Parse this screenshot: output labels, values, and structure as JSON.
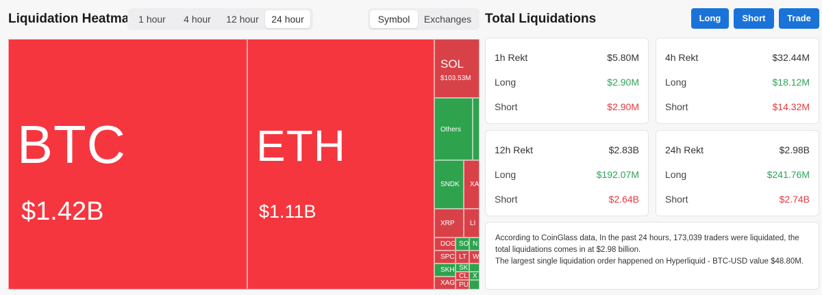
{
  "heatmap": {
    "title": "Liquidation Heatmap",
    "time_tabs": [
      "1 hour",
      "4 hour",
      "12 hour",
      "24 hour"
    ],
    "active_time_tab": "24 hour",
    "view_tabs": [
      "Symbol",
      "Exchanges"
    ],
    "active_view_tab": "Symbol",
    "colors": {
      "long_dominant": "#2fa24e",
      "short_dominant": "#f5363f"
    },
    "tiles": [
      {
        "symbol": "BTC",
        "value": "$1.42B"
      },
      {
        "symbol": "ETH",
        "value": "$1.11B"
      },
      {
        "symbol": "SOL",
        "value": "$103.53M"
      },
      {
        "symbol": "Others"
      },
      {
        "symbol": "SNDK"
      },
      {
        "symbol": "XA"
      },
      {
        "symbol": "XRP"
      },
      {
        "symbol": "LI"
      },
      {
        "symbol": "DOG"
      },
      {
        "symbol": "SO"
      },
      {
        "symbol": "N"
      },
      {
        "symbol": "LT"
      },
      {
        "symbol": "W"
      },
      {
        "symbol": "SPC"
      },
      {
        "symbol": "SK"
      },
      {
        "symbol": "SKH"
      },
      {
        "symbol": "CL"
      },
      {
        "symbol": "X"
      },
      {
        "symbol": "XAG"
      },
      {
        "symbol": "PU"
      }
    ]
  },
  "totals": {
    "title": "Total Liquidations",
    "buttons": {
      "long": "Long",
      "short": "Short",
      "trade": "Trade"
    },
    "cards": [
      {
        "label": "1h Rekt",
        "total": "$5.80M",
        "long_label": "Long",
        "long": "$2.90M",
        "short_label": "Short",
        "short": "$2.90M"
      },
      {
        "label": "4h Rekt",
        "total": "$32.44M",
        "long_label": "Long",
        "long": "$18.12M",
        "short_label": "Short",
        "short": "$14.32M"
      },
      {
        "label": "12h Rekt",
        "total": "$2.83B",
        "long_label": "Long",
        "long": "$192.07M",
        "short_label": "Short",
        "short": "$2.64B"
      },
      {
        "label": "24h Rekt",
        "total": "$2.98B",
        "long_label": "Long",
        "long": "$241.76M",
        "short_label": "Short",
        "short": "$2.74B"
      }
    ],
    "summary_line1": "According to CoinGlass data, In the past 24 hours, 173,039 traders were liquidated, the total liquidations comes in at $2.98 billion.",
    "summary_line2": "The largest single liquidation order happened on Hyperliquid - BTC-USD value $48.80M."
  }
}
